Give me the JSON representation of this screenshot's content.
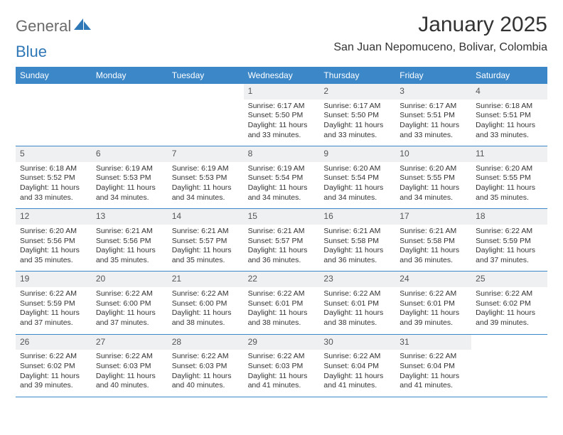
{
  "logo": {
    "general": "General",
    "blue": "Blue"
  },
  "title": "January 2025",
  "location": "San Juan Nepomuceno, Bolivar, Colombia",
  "colors": {
    "header_bg": "#3b87c8",
    "header_text": "#ffffff",
    "shaded_cell": "#eef0f2",
    "border": "#3b87c8",
    "logo_gray": "#6b6b6b",
    "logo_blue": "#2f78b7",
    "text": "#333333"
  },
  "weekdays": [
    "Sunday",
    "Monday",
    "Tuesday",
    "Wednesday",
    "Thursday",
    "Friday",
    "Saturday"
  ],
  "weeks": [
    [
      {
        "day": "",
        "lines": []
      },
      {
        "day": "",
        "lines": []
      },
      {
        "day": "",
        "lines": []
      },
      {
        "day": "1",
        "lines": [
          "Sunrise: 6:17 AM",
          "Sunset: 5:50 PM",
          "Daylight: 11 hours and 33 minutes."
        ]
      },
      {
        "day": "2",
        "lines": [
          "Sunrise: 6:17 AM",
          "Sunset: 5:50 PM",
          "Daylight: 11 hours and 33 minutes."
        ]
      },
      {
        "day": "3",
        "lines": [
          "Sunrise: 6:17 AM",
          "Sunset: 5:51 PM",
          "Daylight: 11 hours and 33 minutes."
        ]
      },
      {
        "day": "4",
        "lines": [
          "Sunrise: 6:18 AM",
          "Sunset: 5:51 PM",
          "Daylight: 11 hours and 33 minutes."
        ]
      }
    ],
    [
      {
        "day": "5",
        "lines": [
          "Sunrise: 6:18 AM",
          "Sunset: 5:52 PM",
          "Daylight: 11 hours and 33 minutes."
        ]
      },
      {
        "day": "6",
        "lines": [
          "Sunrise: 6:19 AM",
          "Sunset: 5:53 PM",
          "Daylight: 11 hours and 34 minutes."
        ]
      },
      {
        "day": "7",
        "lines": [
          "Sunrise: 6:19 AM",
          "Sunset: 5:53 PM",
          "Daylight: 11 hours and 34 minutes."
        ]
      },
      {
        "day": "8",
        "lines": [
          "Sunrise: 6:19 AM",
          "Sunset: 5:54 PM",
          "Daylight: 11 hours and 34 minutes."
        ]
      },
      {
        "day": "9",
        "lines": [
          "Sunrise: 6:20 AM",
          "Sunset: 5:54 PM",
          "Daylight: 11 hours and 34 minutes."
        ]
      },
      {
        "day": "10",
        "lines": [
          "Sunrise: 6:20 AM",
          "Sunset: 5:55 PM",
          "Daylight: 11 hours and 34 minutes."
        ]
      },
      {
        "day": "11",
        "lines": [
          "Sunrise: 6:20 AM",
          "Sunset: 5:55 PM",
          "Daylight: 11 hours and 35 minutes."
        ]
      }
    ],
    [
      {
        "day": "12",
        "lines": [
          "Sunrise: 6:20 AM",
          "Sunset: 5:56 PM",
          "Daylight: 11 hours and 35 minutes."
        ]
      },
      {
        "day": "13",
        "lines": [
          "Sunrise: 6:21 AM",
          "Sunset: 5:56 PM",
          "Daylight: 11 hours and 35 minutes."
        ]
      },
      {
        "day": "14",
        "lines": [
          "Sunrise: 6:21 AM",
          "Sunset: 5:57 PM",
          "Daylight: 11 hours and 35 minutes."
        ]
      },
      {
        "day": "15",
        "lines": [
          "Sunrise: 6:21 AM",
          "Sunset: 5:57 PM",
          "Daylight: 11 hours and 36 minutes."
        ]
      },
      {
        "day": "16",
        "lines": [
          "Sunrise: 6:21 AM",
          "Sunset: 5:58 PM",
          "Daylight: 11 hours and 36 minutes."
        ]
      },
      {
        "day": "17",
        "lines": [
          "Sunrise: 6:21 AM",
          "Sunset: 5:58 PM",
          "Daylight: 11 hours and 36 minutes."
        ]
      },
      {
        "day": "18",
        "lines": [
          "Sunrise: 6:22 AM",
          "Sunset: 5:59 PM",
          "Daylight: 11 hours and 37 minutes."
        ]
      }
    ],
    [
      {
        "day": "19",
        "lines": [
          "Sunrise: 6:22 AM",
          "Sunset: 5:59 PM",
          "Daylight: 11 hours and 37 minutes."
        ]
      },
      {
        "day": "20",
        "lines": [
          "Sunrise: 6:22 AM",
          "Sunset: 6:00 PM",
          "Daylight: 11 hours and 37 minutes."
        ]
      },
      {
        "day": "21",
        "lines": [
          "Sunrise: 6:22 AM",
          "Sunset: 6:00 PM",
          "Daylight: 11 hours and 38 minutes."
        ]
      },
      {
        "day": "22",
        "lines": [
          "Sunrise: 6:22 AM",
          "Sunset: 6:01 PM",
          "Daylight: 11 hours and 38 minutes."
        ]
      },
      {
        "day": "23",
        "lines": [
          "Sunrise: 6:22 AM",
          "Sunset: 6:01 PM",
          "Daylight: 11 hours and 38 minutes."
        ]
      },
      {
        "day": "24",
        "lines": [
          "Sunrise: 6:22 AM",
          "Sunset: 6:01 PM",
          "Daylight: 11 hours and 39 minutes."
        ]
      },
      {
        "day": "25",
        "lines": [
          "Sunrise: 6:22 AM",
          "Sunset: 6:02 PM",
          "Daylight: 11 hours and 39 minutes."
        ]
      }
    ],
    [
      {
        "day": "26",
        "lines": [
          "Sunrise: 6:22 AM",
          "Sunset: 6:02 PM",
          "Daylight: 11 hours and 39 minutes."
        ]
      },
      {
        "day": "27",
        "lines": [
          "Sunrise: 6:22 AM",
          "Sunset: 6:03 PM",
          "Daylight: 11 hours and 40 minutes."
        ]
      },
      {
        "day": "28",
        "lines": [
          "Sunrise: 6:22 AM",
          "Sunset: 6:03 PM",
          "Daylight: 11 hours and 40 minutes."
        ]
      },
      {
        "day": "29",
        "lines": [
          "Sunrise: 6:22 AM",
          "Sunset: 6:03 PM",
          "Daylight: 11 hours and 41 minutes."
        ]
      },
      {
        "day": "30",
        "lines": [
          "Sunrise: 6:22 AM",
          "Sunset: 6:04 PM",
          "Daylight: 11 hours and 41 minutes."
        ]
      },
      {
        "day": "31",
        "lines": [
          "Sunrise: 6:22 AM",
          "Sunset: 6:04 PM",
          "Daylight: 11 hours and 41 minutes."
        ]
      },
      {
        "day": "",
        "lines": []
      }
    ]
  ]
}
